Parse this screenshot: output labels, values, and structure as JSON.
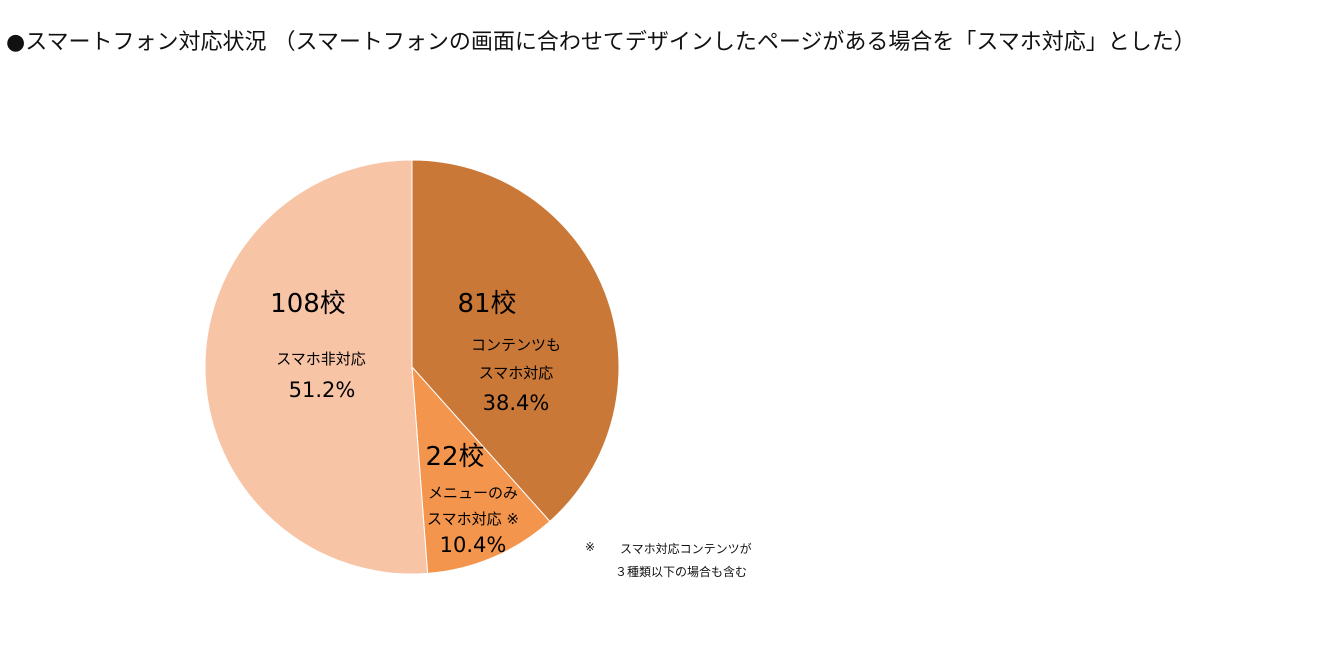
{
  "chart_data": {
    "type": "pie",
    "title": "●スマートフォン対応状況 （スマートフォンの画面に合わせてデザインしたページがある場合を「スマホ対応」とした）",
    "slices": [
      {
        "count_label": "81校",
        "name_lines": [
          "コンテンツも",
          "スマホ対応"
        ],
        "percent_label": "38.4%",
        "value": 38.4,
        "color": "#c97838"
      },
      {
        "count_label": "22校",
        "name_lines": [
          "メニューのみ",
          "スマホ対応 ※"
        ],
        "percent_label": "10.4%",
        "value": 10.4,
        "color": "#f4954d"
      },
      {
        "count_label": "108校",
        "name_lines": [
          "スマホ非対応"
        ],
        "percent_label": "51.2%",
        "value": 51.2,
        "color": "#f8c4a6"
      }
    ],
    "footnote": {
      "mark": "※",
      "line1": "スマホ対応コンテンツが",
      "line2": "３種類以下の場合も含む"
    }
  }
}
